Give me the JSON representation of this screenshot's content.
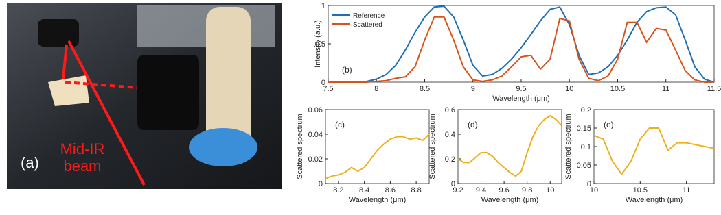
{
  "panel_a": {
    "label": "(a)",
    "annotation": "Mid-IR beam"
  },
  "chart_data": [
    {
      "type": "line",
      "panel_label": "(b)",
      "x_label": "Wavelength (μm)",
      "y_label": "Intensity (a.u.)",
      "x": [
        7.5,
        7.6,
        7.7,
        7.8,
        7.9,
        8.0,
        8.1,
        8.2,
        8.3,
        8.4,
        8.5,
        8.6,
        8.7,
        8.8,
        8.9,
        9.0,
        9.1,
        9.2,
        9.3,
        9.4,
        9.5,
        9.6,
        9.7,
        9.8,
        9.9,
        10.0,
        10.1,
        10.2,
        10.3,
        10.4,
        10.5,
        10.6,
        10.7,
        10.8,
        10.9,
        11.0,
        11.1,
        11.2,
        11.3,
        11.4,
        11.5
      ],
      "series": [
        {
          "name": "Reference",
          "color": "#1f6fb5",
          "values": [
            0,
            0,
            0,
            0,
            0.01,
            0.04,
            0.1,
            0.22,
            0.42,
            0.65,
            0.85,
            0.98,
            0.99,
            0.85,
            0.55,
            0.22,
            0.08,
            0.1,
            0.18,
            0.3,
            0.45,
            0.62,
            0.8,
            0.95,
            0.98,
            0.75,
            0.35,
            0.1,
            0.12,
            0.2,
            0.35,
            0.55,
            0.78,
            0.92,
            0.97,
            0.98,
            0.88,
            0.55,
            0.2,
            0.04,
            0
          ]
        },
        {
          "name": "Scattered",
          "color": "#d95319",
          "values": [
            0,
            0,
            0,
            0,
            0,
            0.01,
            0.02,
            0.05,
            0.07,
            0.2,
            0.55,
            0.85,
            0.85,
            0.55,
            0.2,
            0.03,
            0.01,
            0.03,
            0.08,
            0.2,
            0.33,
            0.35,
            0.17,
            0.3,
            0.83,
            0.8,
            0.3,
            0.05,
            0.02,
            0.08,
            0.3,
            0.78,
            0.78,
            0.52,
            0.7,
            0.68,
            0.42,
            0.15,
            0.03,
            0,
            0
          ]
        }
      ],
      "xlim": [
        7.5,
        11.5
      ],
      "xticks": [
        7.5,
        8,
        8.5,
        9,
        9.5,
        10,
        10.5,
        11,
        11.5
      ],
      "ylim": [
        0,
        1
      ],
      "yticks": [
        0,
        0.5,
        1
      ],
      "legend": "upper left"
    },
    {
      "type": "line",
      "panel_label": "(c)",
      "x_label": "Wavelength (μm)",
      "y_label": "Scattered spectrum",
      "color": "#edb120",
      "x": [
        8.1,
        8.15,
        8.2,
        8.25,
        8.3,
        8.35,
        8.4,
        8.45,
        8.5,
        8.55,
        8.6,
        8.65,
        8.7,
        8.75,
        8.8,
        8.85,
        8.9
      ],
      "values": [
        0.004,
        0.006,
        0.007,
        0.009,
        0.013,
        0.01,
        0.013,
        0.02,
        0.027,
        0.032,
        0.036,
        0.038,
        0.038,
        0.036,
        0.037,
        0.035,
        0.04
      ],
      "xlim": [
        8.1,
        8.9
      ],
      "xticks": [
        8.2,
        8.4,
        8.6,
        8.8
      ],
      "ylim": [
        0,
        0.06
      ],
      "yticks": [
        0,
        0.02,
        0.04,
        0.06
      ]
    },
    {
      "type": "line",
      "panel_label": "(d)",
      "x_label": "Wavelength (μm)",
      "y_label": "Scattered spectrum",
      "color": "#edb120",
      "x": [
        9.2,
        9.25,
        9.3,
        9.35,
        9.4,
        9.45,
        9.5,
        9.55,
        9.6,
        9.65,
        9.7,
        9.75,
        9.8,
        9.85,
        9.9,
        9.95,
        10.0,
        10.05,
        10.1
      ],
      "values": [
        0.2,
        0.17,
        0.17,
        0.21,
        0.25,
        0.25,
        0.22,
        0.17,
        0.13,
        0.09,
        0.06,
        0.1,
        0.25,
        0.38,
        0.47,
        0.52,
        0.55,
        0.52,
        0.47
      ],
      "xlim": [
        9.2,
        10.1
      ],
      "xticks": [
        9.2,
        9.4,
        9.6,
        9.8,
        10
      ],
      "ylim": [
        0,
        0.6
      ],
      "yticks": [
        0,
        0.2,
        0.4,
        0.6
      ]
    },
    {
      "type": "line",
      "panel_label": "(e)",
      "x_label": "Wavelength (μm)",
      "y_label": "Scattered spectrum",
      "color": "#edb120",
      "x": [
        10.0,
        10.1,
        10.2,
        10.3,
        10.4,
        10.5,
        10.6,
        10.7,
        10.8,
        10.9,
        11.0,
        11.1,
        11.2,
        11.3
      ],
      "values": [
        0.13,
        0.12,
        0.06,
        0.025,
        0.06,
        0.12,
        0.15,
        0.15,
        0.09,
        0.11,
        0.11,
        0.105,
        0.1,
        0.095
      ],
      "xlim": [
        10,
        11.3
      ],
      "xticks": [
        10,
        10.5,
        11
      ],
      "ylim": [
        0,
        0.2
      ],
      "yticks": [
        0,
        0.05,
        0.1,
        0.15,
        0.2
      ]
    }
  ]
}
